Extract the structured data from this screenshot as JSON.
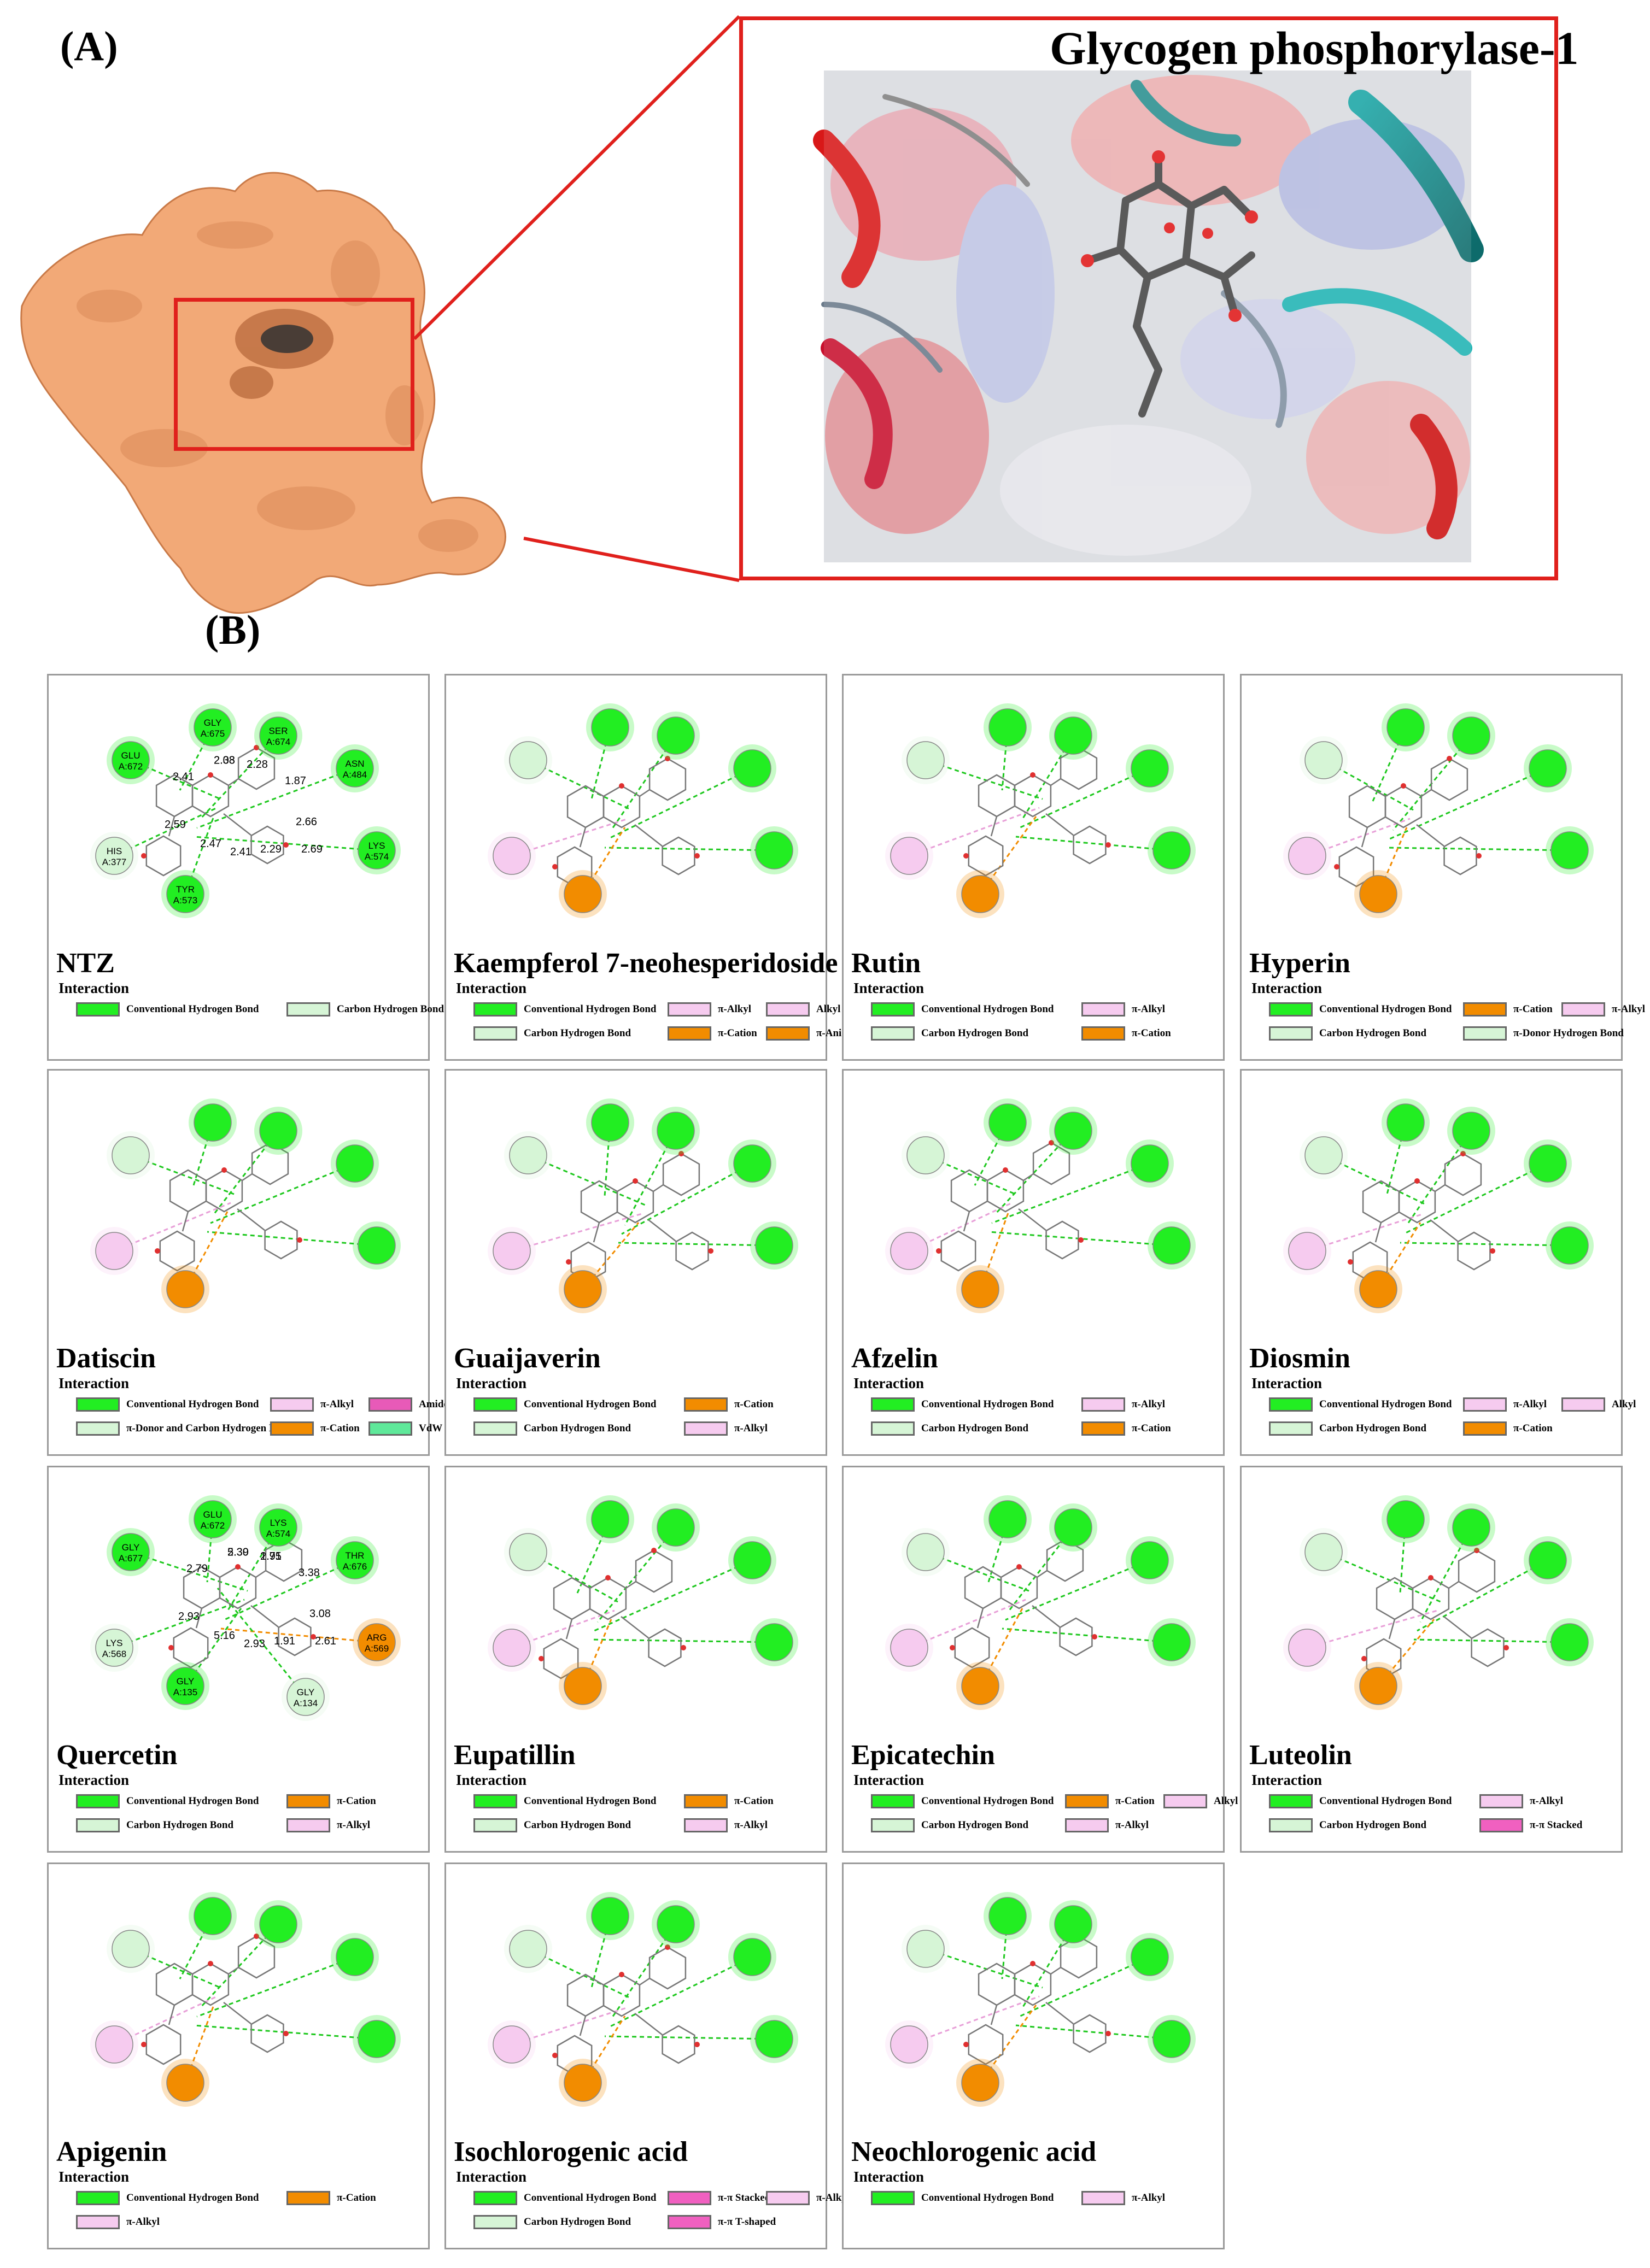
{
  "figure": {
    "label_a": "(A)",
    "label_b": "(B)",
    "protein_title": "Glycogen phosphorylase-1"
  },
  "colors": {
    "Conventional Hydrogen Bond": "#22ee22",
    "Carbon Hydrogen Bond": "#d6f5d6",
    "π-Alkyl": "#f6cbef",
    "Alkyl": "#f6cbef",
    "π-Cation": "#f28c00",
    "π-Anion": "#f28c00",
    "π-Donor Hydrogen Bond": "#d6f5d6",
    "π-Donor and Carbon Hydrogen Bonds": "#d6f5d6",
    "Amide-π Stacked": "#e85ab8",
    "VdW": "#5fe89a",
    "π-π Stacked": "#f060c0",
    "π-π T-shaped": "#f060c0",
    "protein_surface": "#f2a977",
    "frame": "#e0201c"
  },
  "interaction_title": "Interaction",
  "panels": [
    {
      "name": "NTZ",
      "legend": [
        "Conventional Hydrogen Bond",
        "Carbon Hydrogen Bond"
      ],
      "residues": [
        {
          "text": "GLY\nA:675",
          "type": "Conventional Hydrogen Bond"
        },
        {
          "text": "SER\nA:674",
          "type": "Conventional Hydrogen Bond"
        },
        {
          "text": "GLU\nA:672",
          "type": "Conventional Hydrogen Bond"
        },
        {
          "text": "ASN\nA:484",
          "type": "Conventional Hydrogen Bond"
        },
        {
          "text": "HIS\nA:377",
          "type": "Carbon Hydrogen Bond"
        },
        {
          "text": "LYS\nA:574",
          "type": "Conventional Hydrogen Bond"
        },
        {
          "text": "TYR\nA:573",
          "type": "Conventional Hydrogen Bond"
        }
      ],
      "distances": [
        "2.03",
        "2.28",
        "2.41",
        "1.87",
        "2.59",
        "2.66",
        "2.47",
        "2.29",
        "2.41",
        "2.69",
        "2.38"
      ]
    },
    {
      "name": "Kaempferol 7-neohesperidoside",
      "legend": [
        "Conventional Hydrogen Bond",
        "π-Alkyl",
        "Alkyl",
        "Carbon Hydrogen Bond",
        "π-Cation",
        "π-Anion"
      ],
      "residues": [],
      "distances": []
    },
    {
      "name": "Rutin",
      "legend": [
        "Conventional Hydrogen Bond",
        "π-Alkyl",
        "Carbon Hydrogen Bond",
        "π-Cation"
      ],
      "residues": [],
      "distances": []
    },
    {
      "name": "Hyperin",
      "legend": [
        "Conventional Hydrogen Bond",
        "π-Cation",
        "π-Alkyl",
        "Carbon Hydrogen Bond",
        "π-Donor Hydrogen Bond"
      ],
      "residues": [],
      "distances": []
    },
    {
      "name": "Datiscin",
      "legend": [
        "Conventional Hydrogen Bond",
        "π-Alkyl",
        "Amide-π Stacked",
        "π-Donor and Carbon Hydrogen Bonds",
        "π-Cation",
        "VdW"
      ],
      "residues": [],
      "distances": []
    },
    {
      "name": "Guaijaverin",
      "legend": [
        "Conventional Hydrogen Bond",
        "π-Cation",
        "Carbon Hydrogen Bond",
        "π-Alkyl"
      ],
      "residues": [],
      "distances": []
    },
    {
      "name": "Afzelin",
      "legend": [
        "Conventional Hydrogen Bond",
        "π-Alkyl",
        "Carbon Hydrogen Bond",
        "π-Cation"
      ],
      "residues": [],
      "distances": []
    },
    {
      "name": "Diosmin",
      "legend": [
        "Conventional Hydrogen Bond",
        "π-Alkyl",
        "Alkyl",
        "Carbon Hydrogen Bond",
        "π-Cation"
      ],
      "residues": [],
      "distances": []
    },
    {
      "name": "Quercetin",
      "legend": [
        "Conventional Hydrogen Bond",
        "π-Cation",
        "Carbon Hydrogen Bond",
        "π-Alkyl"
      ],
      "residues": [
        {
          "text": "GLU\nA:672",
          "type": "Conventional Hydrogen Bond"
        },
        {
          "text": "LYS\nA:574",
          "type": "Conventional Hydrogen Bond"
        },
        {
          "text": "GLY\nA:677",
          "type": "Conventional Hydrogen Bond"
        },
        {
          "text": "THR\nA:676",
          "type": "Conventional Hydrogen Bond"
        },
        {
          "text": "LYS\nA:568",
          "type": "Carbon Hydrogen Bond"
        },
        {
          "text": "ARG\nA:569",
          "type": "π-Cation"
        },
        {
          "text": "GLY\nA:135",
          "type": "Conventional Hydrogen Bond"
        },
        {
          "text": "GLY\nA:134",
          "type": "Carbon Hydrogen Bond"
        }
      ],
      "distances": [
        "2.39",
        "1.75",
        "2.79",
        "3.38",
        "2.93",
        "3.08",
        "5.16",
        "1.91",
        "2.93",
        "2.61",
        "5.30",
        "2.91"
      ]
    },
    {
      "name": "Eupatillin",
      "legend": [
        "Conventional Hydrogen Bond",
        "π-Cation",
        "Carbon Hydrogen Bond",
        "π-Alkyl"
      ],
      "residues": [],
      "distances": []
    },
    {
      "name": "Epicatechin",
      "legend": [
        "Conventional Hydrogen Bond",
        "π-Cation",
        "Alkyl",
        "Carbon Hydrogen Bond",
        "π-Alkyl"
      ],
      "residues": [],
      "distances": []
    },
    {
      "name": "Luteolin",
      "legend": [
        "Conventional Hydrogen Bond",
        "π-Alkyl",
        "Carbon Hydrogen Bond",
        "π-π Stacked"
      ],
      "residues": [],
      "distances": []
    },
    {
      "name": "Apigenin",
      "legend": [
        "Conventional Hydrogen Bond",
        "π-Cation",
        "π-Alkyl"
      ],
      "residues": [],
      "distances": []
    },
    {
      "name": "Isochlorogenic acid",
      "legend": [
        "Conventional Hydrogen Bond",
        "π-π Stacked",
        "π-Alkyl",
        "Carbon Hydrogen Bond",
        "π-π T-shaped"
      ],
      "residues": [],
      "distances": []
    },
    {
      "name": "Neochlorogenic acid",
      "legend": [
        "Conventional Hydrogen Bond",
        "π-Alkyl"
      ],
      "residues": [],
      "distances": []
    }
  ]
}
